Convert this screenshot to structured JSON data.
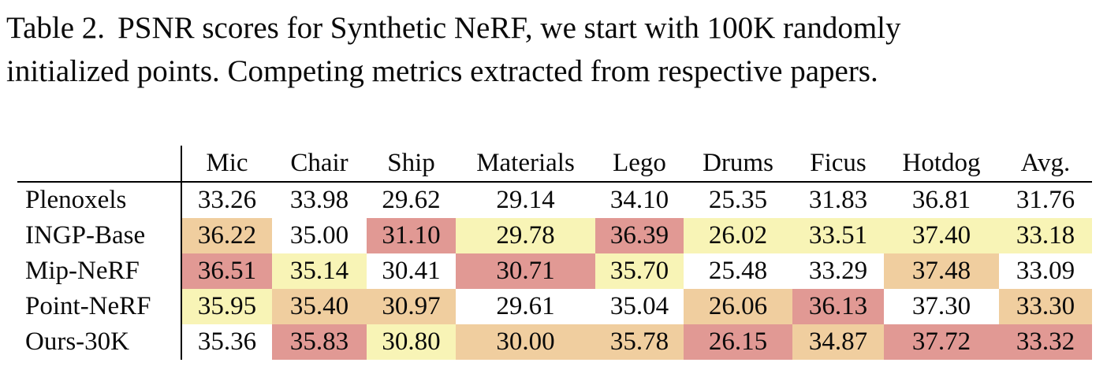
{
  "caption": {
    "label": "Table 2.",
    "line1": "PSNR scores for Synthetic NeRF, we start with 100K randomly",
    "line2": "initialized points. Competing metrics extracted from respective papers."
  },
  "table": {
    "title": "PSNR scores for Synthetic NeRF",
    "columns": [
      "Mic",
      "Chair",
      "Ship",
      "Materials",
      "Lego",
      "Drums",
      "Ficus",
      "Hotdog",
      "Avg."
    ],
    "rows": [
      {
        "label": "Plenoxels",
        "values": [
          "33.26",
          "33.98",
          "29.62",
          "29.14",
          "34.10",
          "25.35",
          "31.83",
          "36.81",
          "31.76"
        ],
        "highlights": [
          0,
          0,
          0,
          0,
          0,
          0,
          0,
          0,
          0
        ]
      },
      {
        "label": "INGP-Base",
        "values": [
          "36.22",
          "35.00",
          "31.10",
          "29.78",
          "36.39",
          "26.02",
          "33.51",
          "37.40",
          "33.18"
        ],
        "highlights": [
          2,
          0,
          3,
          1,
          3,
          1,
          1,
          1,
          1
        ]
      },
      {
        "label": "Mip-NeRF",
        "values": [
          "36.51",
          "35.14",
          "30.41",
          "30.71",
          "35.70",
          "25.48",
          "33.29",
          "37.48",
          "33.09"
        ],
        "highlights": [
          3,
          1,
          0,
          3,
          1,
          0,
          0,
          2,
          0
        ]
      },
      {
        "label": "Point-NeRF",
        "values": [
          "35.95",
          "35.40",
          "30.97",
          "29.61",
          "35.04",
          "26.06",
          "36.13",
          "37.30",
          "33.30"
        ],
        "highlights": [
          1,
          2,
          2,
          0,
          0,
          2,
          3,
          0,
          2
        ]
      },
      {
        "label": "Ours-30K",
        "values": [
          "35.36",
          "35.83",
          "30.80",
          "30.00",
          "35.78",
          "26.15",
          "34.87",
          "37.72",
          "33.32"
        ],
        "highlights": [
          0,
          3,
          1,
          2,
          2,
          3,
          2,
          3,
          3
        ]
      }
    ],
    "highlight_colors": {
      "third_best": "#F8F4B6",
      "second_best": "#F0CE9F",
      "best": "#E19994"
    },
    "rule_color": "#000000"
  }
}
